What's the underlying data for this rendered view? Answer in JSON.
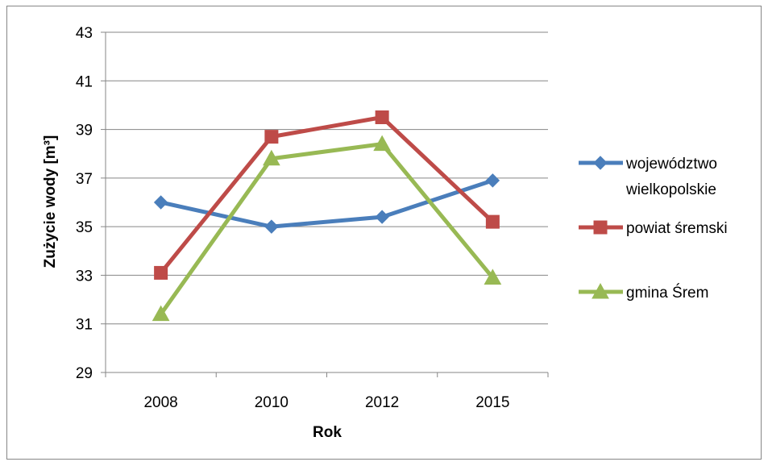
{
  "chart_data": {
    "type": "line",
    "title": "",
    "xlabel": "Rok",
    "ylabel": "Zużycie wody [m³]",
    "categories": [
      "2008",
      "2010",
      "2012",
      "2015"
    ],
    "ylim": [
      29,
      43
    ],
    "yticks": [
      "29",
      "31",
      "33",
      "35",
      "37",
      "39",
      "41",
      "43"
    ],
    "grid": true,
    "legend_position": "right",
    "series": [
      {
        "name": "województwo wielkopolskie",
        "name_lines": [
          "województwo",
          "wielkopolskie"
        ],
        "values": [
          36.0,
          35.0,
          35.4,
          36.9
        ],
        "color": "#4a7ebb",
        "marker": "diamond"
      },
      {
        "name": "powiat śremski",
        "name_lines": [
          "powiat śremski"
        ],
        "values": [
          33.1,
          38.7,
          39.5,
          35.2
        ],
        "color": "#be4b48",
        "marker": "square"
      },
      {
        "name": "gmina Śrem",
        "name_lines": [
          "gmina Śrem"
        ],
        "values": [
          31.4,
          37.8,
          38.4,
          32.9
        ],
        "color": "#98b954",
        "marker": "triangle"
      }
    ]
  }
}
